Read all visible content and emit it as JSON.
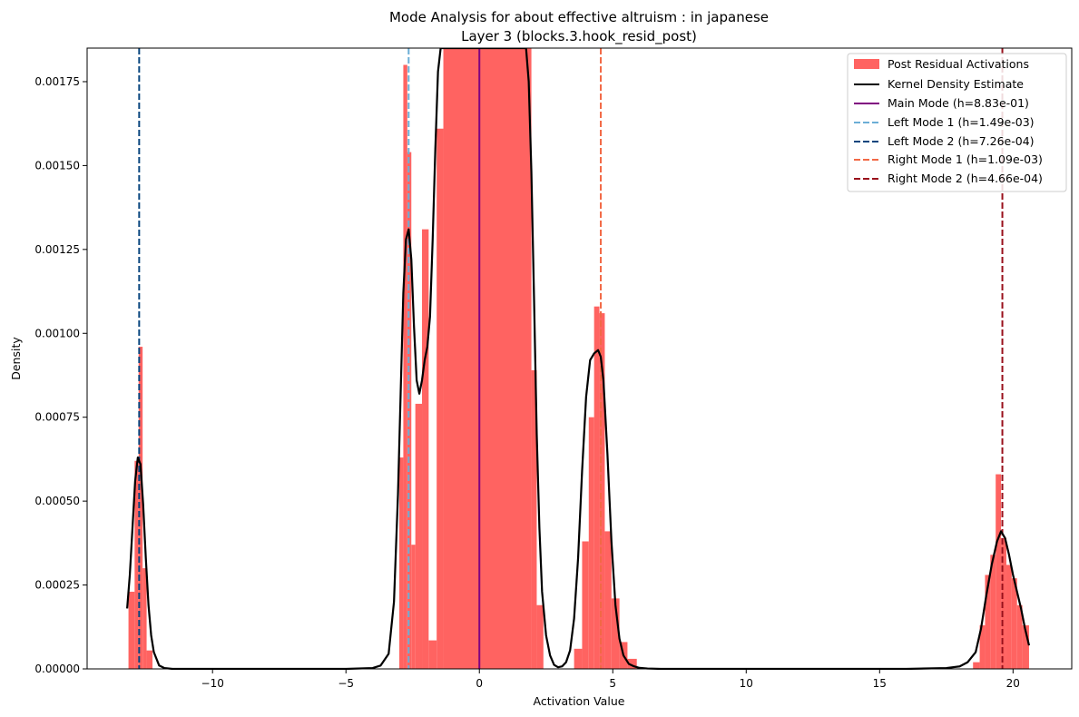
{
  "chart_data": {
    "type": "histogram",
    "title": "Mode Analysis for about effective altruism : in japanese",
    "subtitle": "Layer 3 (blocks.3.hook_resid_post)",
    "xlabel": "Activation Value",
    "ylabel": "Density",
    "xlim": [
      -14.7,
      22.2
    ],
    "ylim": [
      0,
      0.00185
    ],
    "x_ticks": [
      -10,
      -5,
      0,
      5,
      10,
      15,
      20
    ],
    "x_tick_labels": [
      "−10",
      "−5",
      "0",
      "5",
      "10",
      "15",
      "20"
    ],
    "y_ticks": [
      0,
      0.00025,
      0.0005,
      0.00075,
      0.001,
      0.00125,
      0.0015,
      0.00175
    ],
    "y_tick_labels": [
      "0.00000",
      "0.00025",
      "0.00050",
      "0.00075",
      "0.00100",
      "0.00125",
      "0.00150",
      "0.00175"
    ],
    "grid": false,
    "legend_position": "top-right",
    "histogram": {
      "name": "Post Residual Activations",
      "color": "#ff6361",
      "bins": [
        {
          "x0": -13.15,
          "x1": -12.92,
          "y": 0.00023
        },
        {
          "x0": -12.92,
          "x1": -12.77,
          "y": 0.00062
        },
        {
          "x0": -12.77,
          "x1": -12.62,
          "y": 0.00096
        },
        {
          "x0": -12.62,
          "x1": -12.47,
          "y": 0.0003
        },
        {
          "x0": -12.47,
          "x1": -12.25,
          "y": 5.5e-05
        },
        {
          "x0": -3.0,
          "x1": -2.85,
          "y": 0.00063
        },
        {
          "x0": -2.85,
          "x1": -2.7,
          "y": 0.0018
        },
        {
          "x0": -2.7,
          "x1": -2.55,
          "y": 0.00154
        },
        {
          "x0": -2.55,
          "x1": -2.4,
          "y": 0.00037
        },
        {
          "x0": -2.4,
          "x1": -2.15,
          "y": 0.00079
        },
        {
          "x0": -2.15,
          "x1": -1.9,
          "y": 0.00131
        },
        {
          "x0": -1.9,
          "x1": -1.6,
          "y": 8.5e-05
        },
        {
          "x0": -1.6,
          "x1": -1.35,
          "y": 0.00161
        },
        {
          "x0": -1.35,
          "x1": 1.95,
          "y": 0.00185
        },
        {
          "x0": 1.95,
          "x1": 2.15,
          "y": 0.00089
        },
        {
          "x0": 2.15,
          "x1": 2.4,
          "y": 0.00019
        },
        {
          "x0": 3.55,
          "x1": 3.85,
          "y": 6e-05
        },
        {
          "x0": 3.85,
          "x1": 4.1,
          "y": 0.00038
        },
        {
          "x0": 4.1,
          "x1": 4.3,
          "y": 0.00075
        },
        {
          "x0": 4.3,
          "x1": 4.5,
          "y": 0.00108
        },
        {
          "x0": 4.5,
          "x1": 4.7,
          "y": 0.00106
        },
        {
          "x0": 4.7,
          "x1": 4.95,
          "y": 0.00041
        },
        {
          "x0": 4.95,
          "x1": 5.25,
          "y": 0.00021
        },
        {
          "x0": 5.25,
          "x1": 5.55,
          "y": 8e-05
        },
        {
          "x0": 5.55,
          "x1": 5.9,
          "y": 3e-05
        },
        {
          "x0": 18.5,
          "x1": 18.75,
          "y": 2e-05
        },
        {
          "x0": 18.75,
          "x1": 18.95,
          "y": 0.00013
        },
        {
          "x0": 18.95,
          "x1": 19.15,
          "y": 0.00028
        },
        {
          "x0": 19.15,
          "x1": 19.35,
          "y": 0.00034
        },
        {
          "x0": 19.35,
          "x1": 19.55,
          "y": 0.00058
        },
        {
          "x0": 19.55,
          "x1": 19.75,
          "y": 0.00039
        },
        {
          "x0": 19.75,
          "x1": 19.95,
          "y": 0.00031
        },
        {
          "x0": 19.95,
          "x1": 20.15,
          "y": 0.00027
        },
        {
          "x0": 20.15,
          "x1": 20.35,
          "y": 0.00019
        },
        {
          "x0": 20.35,
          "x1": 20.6,
          "y": 0.00013
        }
      ]
    },
    "kde": {
      "name": "Kernel Density Estimate",
      "color": "#000000",
      "x": [
        -13.2,
        -13.1,
        -13.0,
        -12.9,
        -12.8,
        -12.7,
        -12.6,
        -12.5,
        -12.4,
        -12.3,
        -12.2,
        -12.0,
        -11.8,
        -11.5,
        -11.0,
        -10.0,
        -8.0,
        -6.0,
        -5.0,
        -4.0,
        -3.7,
        -3.4,
        -3.2,
        -3.05,
        -2.95,
        -2.85,
        -2.75,
        -2.65,
        -2.55,
        -2.45,
        -2.35,
        -2.25,
        -2.15,
        -2.05,
        -1.95,
        -1.85,
        -1.75,
        -1.65,
        -1.55,
        -1.45,
        1.75,
        1.85,
        1.95,
        2.05,
        2.15,
        2.25,
        2.35,
        2.5,
        2.65,
        2.8,
        2.95,
        3.1,
        3.25,
        3.4,
        3.55,
        3.7,
        3.85,
        4.0,
        4.15,
        4.3,
        4.45,
        4.55,
        4.65,
        4.8,
        4.95,
        5.1,
        5.25,
        5.4,
        5.6,
        5.8,
        6.0,
        6.3,
        6.8,
        8.0,
        12.0,
        16.0,
        17.5,
        18.0,
        18.3,
        18.6,
        18.8,
        19.0,
        19.2,
        19.4,
        19.55,
        19.7,
        19.85,
        20.0,
        20.15,
        20.3,
        20.45,
        20.6
      ],
      "y": [
        0.00018,
        0.00028,
        0.00042,
        0.00056,
        0.00063,
        0.00061,
        0.00049,
        0.00033,
        0.00019,
        0.0001,
        5e-05,
        1e-05,
        2.5e-06,
        0.0,
        0.0,
        0.0,
        0.0,
        0.0,
        0.0,
        2.5e-06,
        1e-05,
        4.5e-05,
        0.0002,
        0.00052,
        0.00082,
        0.00112,
        0.00128,
        0.00131,
        0.00122,
        0.00102,
        0.00086,
        0.00082,
        0.00086,
        0.00092,
        0.00096,
        0.00105,
        0.00128,
        0.00155,
        0.00178,
        0.00185,
        0.00185,
        0.00175,
        0.00148,
        0.0011,
        0.0007,
        0.00042,
        0.00023,
        0.0001,
        4e-05,
        1.2e-05,
        5e-06,
        7.5e-06,
        2e-05,
        5.5e-05,
        0.00015,
        0.00033,
        0.00059,
        0.00081,
        0.00092,
        0.00094,
        0.00095,
        0.00093,
        0.00086,
        0.00064,
        0.00038,
        0.00019,
        9e-05,
        4e-05,
        1.5e-05,
        7.5e-06,
        3e-06,
        1.2e-06,
        0.0,
        0.0,
        0.0,
        0.0,
        2.5e-06,
        7.5e-06,
        2e-05,
        5e-05,
        0.00012,
        0.00022,
        0.00031,
        0.00038,
        0.00041,
        0.00039,
        0.00034,
        0.00028,
        0.00023,
        0.00018,
        0.00012,
        7e-05
      ]
    },
    "modes": [
      {
        "name": "Main Mode (h=8.83e-01)",
        "x": 0.0,
        "color": "#800080",
        "style": "solid"
      },
      {
        "name": "Left Mode 1 (h=1.49e-03)",
        "x": -2.65,
        "color": "#6baed6",
        "style": "dashed"
      },
      {
        "name": "Left Mode 2 (h=7.26e-04)",
        "x": -12.75,
        "color": "#08457e",
        "style": "dashed"
      },
      {
        "name": "Right Mode 1 (h=1.09e-03)",
        "x": 4.55,
        "color": "#f26946",
        "style": "dashed"
      },
      {
        "name": "Right Mode 2 (h=4.66e-04)",
        "x": 19.6,
        "color": "#99101b",
        "style": "dashed"
      }
    ]
  }
}
